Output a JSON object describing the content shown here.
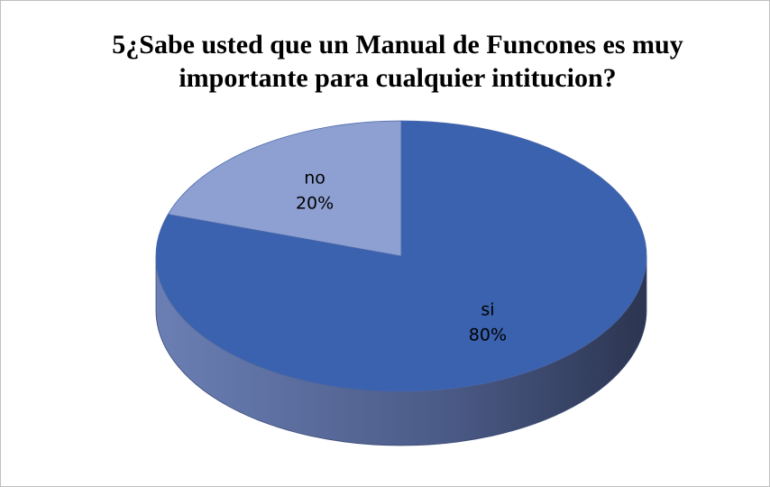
{
  "chart_data": {
    "type": "pie",
    "title": "5¿Sabe usted que un Manual de Funcones es muy importante para cualquier intitucion?",
    "categories": [
      "si",
      "no"
    ],
    "values": [
      80,
      20
    ],
    "value_labels": [
      "80%",
      "20%"
    ],
    "colors": [
      "#3a62ae",
      "#8ea0d2"
    ],
    "three_d": true
  }
}
